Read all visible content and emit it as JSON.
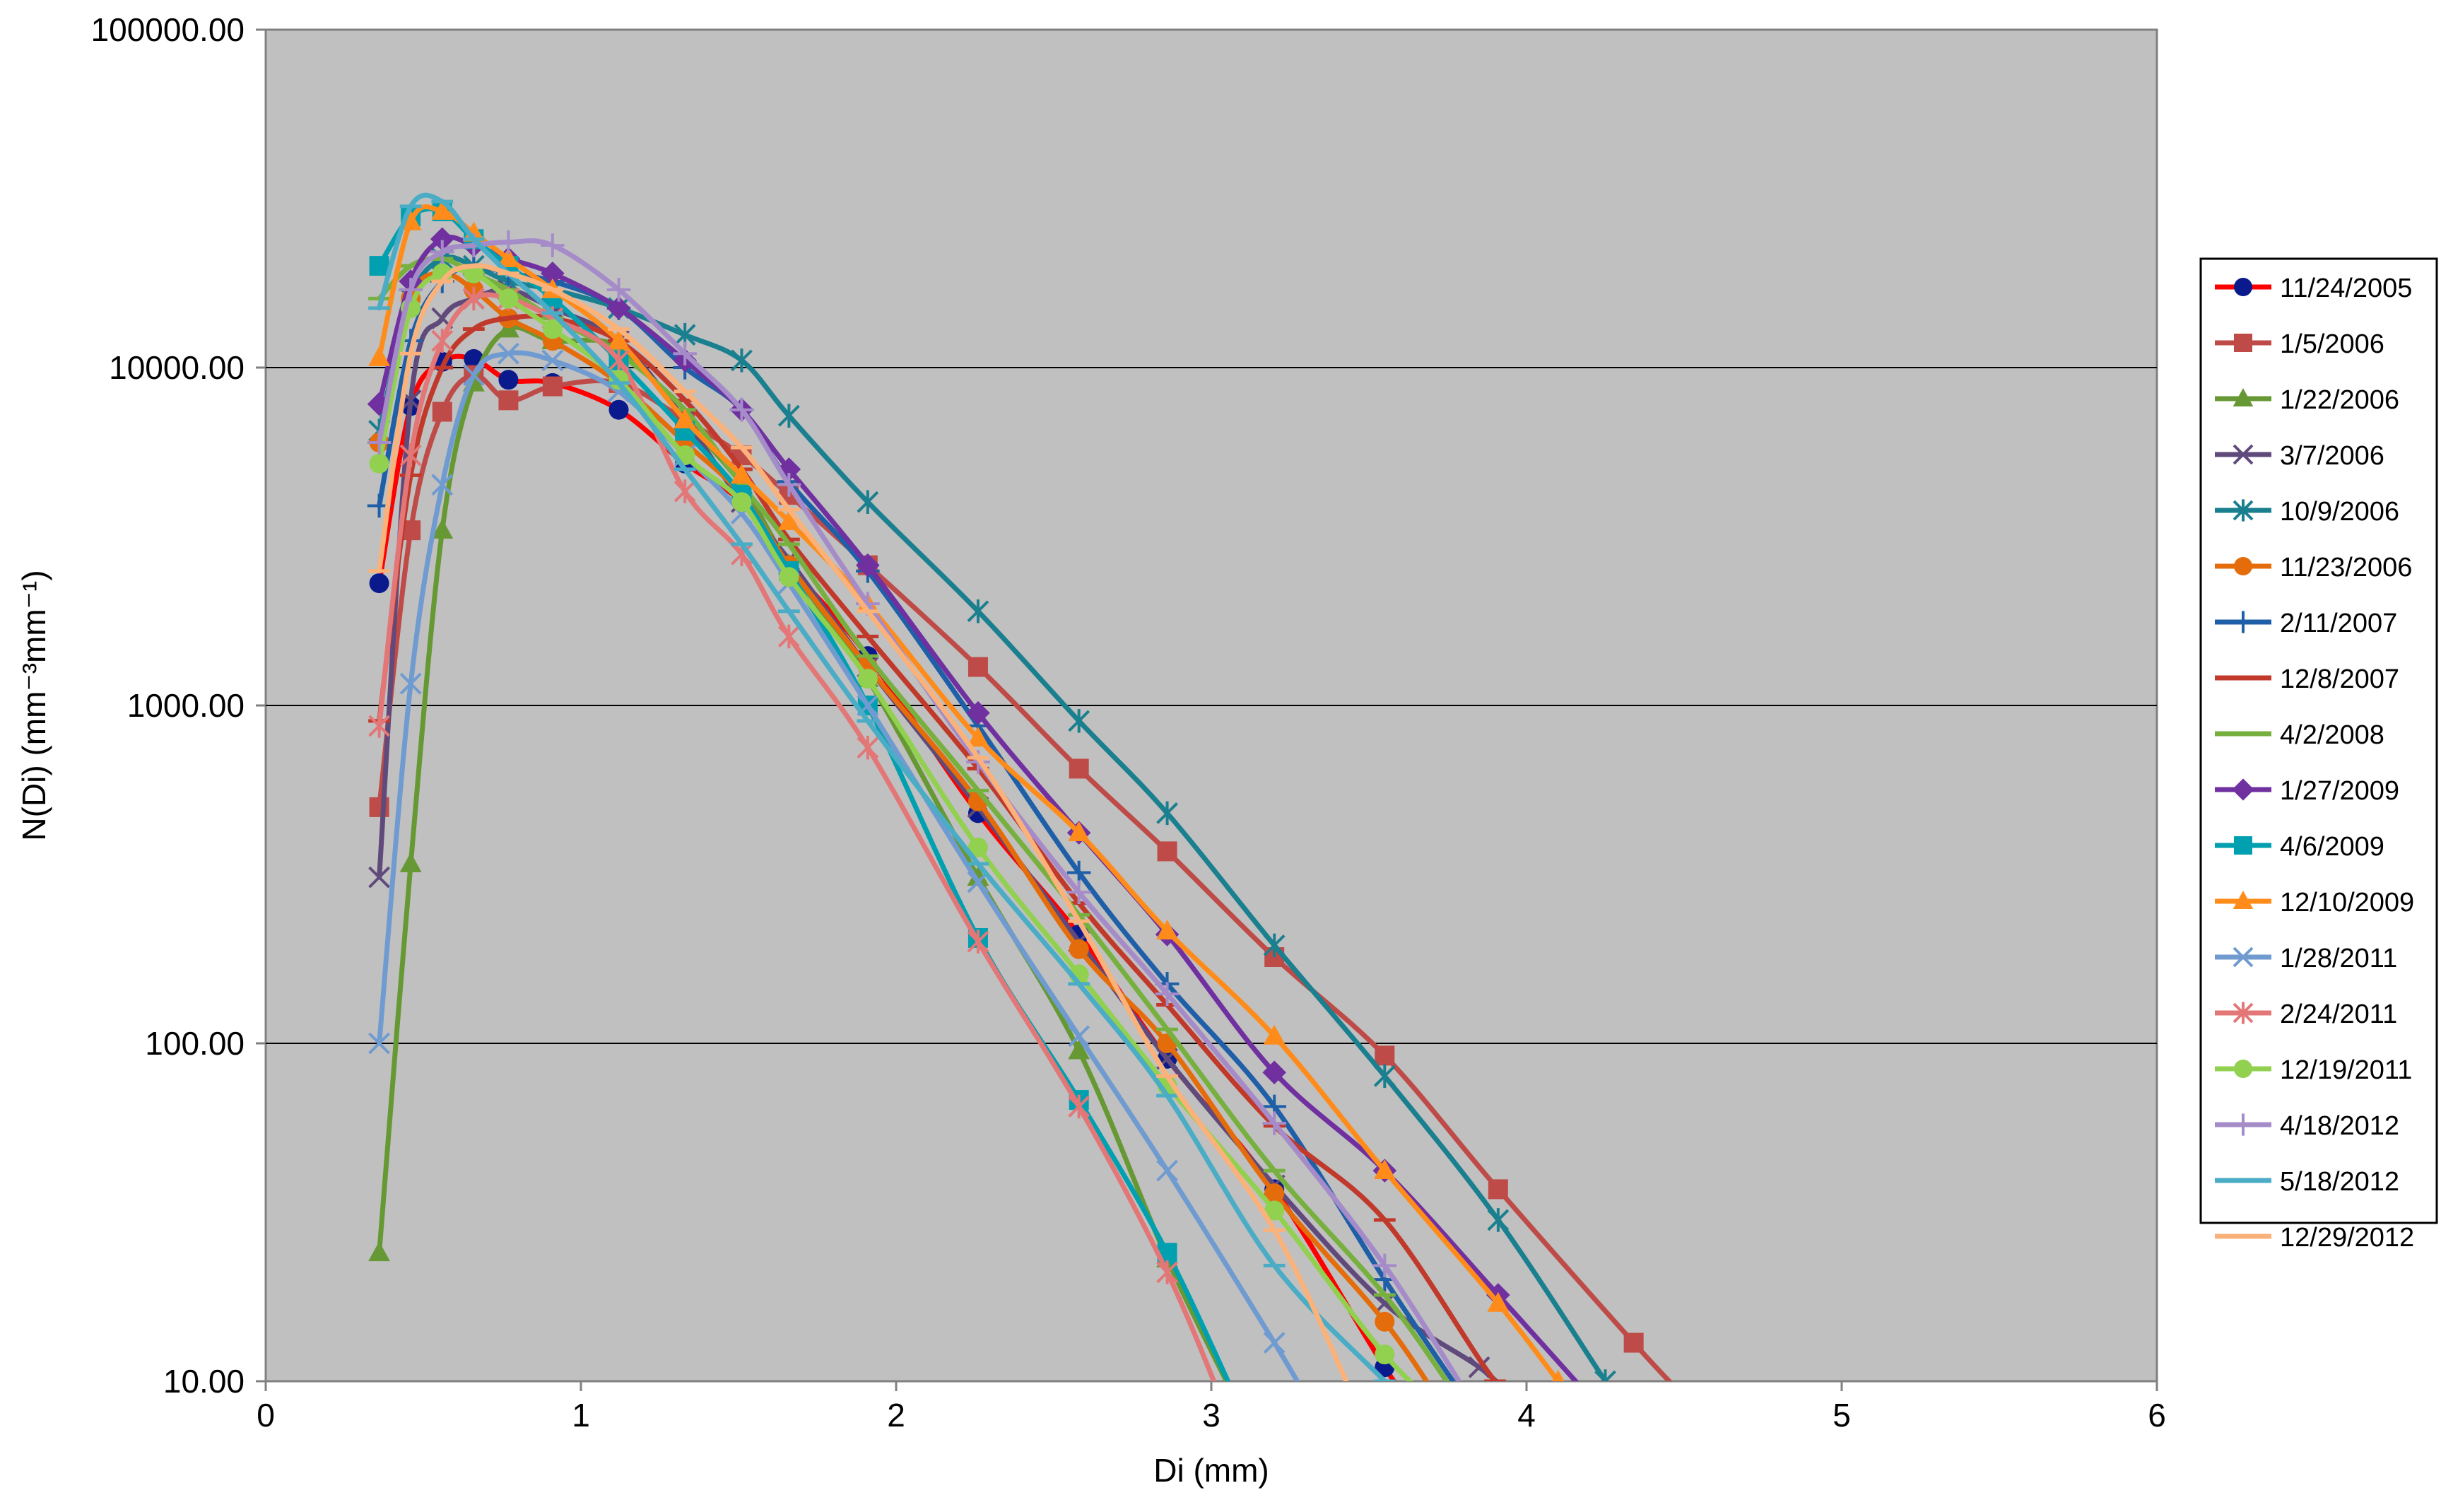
{
  "chart_data": {
    "type": "line",
    "title": "",
    "xlabel": "Di (mm)",
    "ylabel": "N(Di) (mm⁻³mm⁻¹)",
    "xlim": [
      0,
      6
    ],
    "ylim": [
      10,
      100000
    ],
    "y_scale": "log",
    "x_ticks": [
      "0",
      "1",
      "2",
      "3",
      "4",
      "5",
      "6"
    ],
    "y_ticks": [
      "10.00",
      "100.00",
      "1000.00",
      "10000.00",
      "100000.00"
    ],
    "grid": "horizontal",
    "legend_position": "right",
    "plot_background": "#c0c0c0",
    "series": [
      {
        "name": "11/24/2005",
        "color": "#ff0000",
        "marker": "circle",
        "x": [
          0.36,
          0.46,
          0.56,
          0.66,
          0.77,
          0.91,
          1.12,
          1.33,
          1.51,
          1.66,
          1.91,
          2.26,
          2.58,
          2.86,
          3.2,
          3.55,
          3.7
        ],
        "y": [
          2300,
          7700,
          10400,
          10600,
          9200,
          9000,
          7500,
          5200,
          4000,
          2600,
          1400,
          480,
          210,
          90,
          37,
          11,
          7
        ]
      },
      {
        "name": "1/5/2006",
        "color": "#be4b48",
        "marker": "square",
        "x": [
          0.36,
          0.46,
          0.56,
          0.66,
          0.77,
          0.91,
          1.12,
          1.33,
          1.51,
          1.66,
          1.91,
          2.26,
          2.58,
          2.86,
          3.2,
          3.55,
          3.91,
          4.34,
          4.5
        ],
        "y": [
          500,
          3300,
          7400,
          9500,
          8000,
          8800,
          9000,
          7000,
          5500,
          4200,
          2600,
          1300,
          650,
          370,
          180,
          92,
          37,
          13,
          9
        ]
      },
      {
        "name": "1/22/2006",
        "color": "#669933",
        "marker": "triangle",
        "x": [
          0.36,
          0.46,
          0.56,
          0.66,
          0.77,
          0.91,
          1.12,
          1.33,
          1.51,
          1.66,
          1.91,
          2.26,
          2.58,
          2.86,
          3.1
        ],
        "y": [
          24,
          340,
          3300,
          9000,
          13000,
          12000,
          11500,
          7000,
          4500,
          2600,
          1200,
          310,
          95,
          23,
          8
        ]
      },
      {
        "name": "3/7/2006",
        "color": "#604a7b",
        "marker": "x",
        "x": [
          0.36,
          0.46,
          0.56,
          0.66,
          0.77,
          0.91,
          1.12,
          1.33,
          1.51,
          1.66,
          1.91,
          2.26,
          2.58,
          2.86,
          3.2,
          3.55,
          3.85,
          3.95
        ],
        "y": [
          310,
          8000,
          14000,
          16000,
          17000,
          15000,
          12000,
          7000,
          4000,
          2700,
          1300,
          500,
          200,
          90,
          38,
          17,
          11,
          9
        ]
      },
      {
        "name": "10/9/2006",
        "color": "#1a7f8e",
        "marker": "star",
        "x": [
          0.36,
          0.46,
          0.56,
          0.66,
          0.77,
          0.91,
          1.12,
          1.33,
          1.51,
          1.66,
          1.91,
          2.26,
          2.58,
          2.86,
          3.2,
          3.55,
          3.91,
          4.25
        ],
        "y": [
          6500,
          16000,
          21000,
          20000,
          18000,
          17000,
          15000,
          12500,
          10500,
          7200,
          4000,
          1900,
          900,
          480,
          195,
          80,
          30,
          10
        ]
      },
      {
        "name": "11/23/2006",
        "color": "#e46c0a",
        "marker": "circle",
        "x": [
          0.36,
          0.46,
          0.56,
          0.66,
          0.77,
          0.91,
          1.12,
          1.33,
          1.51,
          1.66,
          1.91,
          2.26,
          2.58,
          2.86,
          3.2,
          3.55,
          3.75
        ],
        "y": [
          6000,
          16000,
          19000,
          17000,
          14000,
          12000,
          9000,
          6000,
          4200,
          2600,
          1300,
          520,
          190,
          100,
          36,
          15,
          8
        ]
      },
      {
        "name": "2/11/2007",
        "color": "#1f5fa8",
        "marker": "plus",
        "x": [
          0.36,
          0.46,
          0.56,
          0.66,
          0.77,
          0.91,
          1.12,
          1.33,
          1.51,
          1.66,
          1.91,
          2.26,
          2.58,
          2.86,
          3.2,
          3.55,
          3.8
        ],
        "y": [
          3900,
          12000,
          18000,
          20000,
          19000,
          18000,
          15000,
          10000,
          7500,
          4600,
          2500,
          870,
          320,
          150,
          65,
          20,
          9
        ]
      },
      {
        "name": "12/8/2007",
        "color": "#c0392b",
        "marker": "dash",
        "x": [
          0.36,
          0.46,
          0.56,
          0.66,
          0.77,
          0.91,
          1.12,
          1.33,
          1.51,
          1.66,
          1.91,
          2.26,
          2.58,
          2.86,
          3.2,
          3.55,
          3.9,
          4.0
        ],
        "y": [
          900,
          4800,
          10000,
          13000,
          14000,
          14000,
          12000,
          8000,
          5000,
          3100,
          1600,
          650,
          260,
          130,
          57,
          30,
          10,
          9
        ]
      },
      {
        "name": "4/2/2008",
        "color": "#77b03f",
        "marker": "dash",
        "x": [
          0.36,
          0.46,
          0.56,
          0.66,
          0.77,
          0.91,
          1.12,
          1.33,
          1.51,
          1.66,
          1.91,
          2.26,
          2.58,
          2.86,
          3.2,
          3.55,
          3.78
        ],
        "y": [
          16000,
          20000,
          21000,
          19000,
          17000,
          14000,
          11000,
          7500,
          4500,
          3000,
          1400,
          560,
          240,
          110,
          42,
          18,
          9
        ]
      },
      {
        "name": "1/27/2009",
        "color": "#7030a0",
        "marker": "diamond",
        "x": [
          0.36,
          0.46,
          0.56,
          0.66,
          0.77,
          0.91,
          1.12,
          1.33,
          1.51,
          1.66,
          1.91,
          2.26,
          2.58,
          2.86,
          3.2,
          3.55,
          3.91,
          4.2
        ],
        "y": [
          7800,
          18000,
          24000,
          23000,
          21000,
          19000,
          15000,
          10500,
          7500,
          5000,
          2600,
          950,
          420,
          210,
          82,
          42,
          18,
          9
        ]
      },
      {
        "name": "4/6/2009",
        "color": "#00a0b0",
        "marker": "square",
        "x": [
          0.36,
          0.46,
          0.56,
          0.66,
          0.77,
          0.91,
          1.12,
          1.33,
          1.51,
          1.66,
          1.91,
          2.26,
          2.58,
          2.86,
          3.1
        ],
        "y": [
          20000,
          28000,
          29000,
          24000,
          20000,
          16000,
          10500,
          6500,
          4200,
          2500,
          1000,
          205,
          68,
          24,
          8
        ]
      },
      {
        "name": "12/10/2009",
        "color": "#ff8c1a",
        "marker": "triangle",
        "x": [
          0.36,
          0.46,
          0.56,
          0.66,
          0.77,
          0.91,
          1.12,
          1.33,
          1.51,
          1.66,
          1.91,
          2.26,
          2.58,
          2.86,
          3.2,
          3.55,
          3.91,
          4.1
        ],
        "y": [
          10700,
          27000,
          29000,
          25000,
          21000,
          17000,
          12000,
          7000,
          4800,
          3500,
          2000,
          800,
          420,
          215,
          105,
          42,
          17,
          10
        ]
      },
      {
        "name": "1/28/2011",
        "color": "#6f9bd1",
        "marker": "x",
        "x": [
          0.36,
          0.46,
          0.56,
          0.66,
          0.77,
          0.91,
          1.12,
          1.33,
          1.51,
          1.66,
          1.91,
          2.26,
          2.58,
          2.86,
          3.2,
          3.3
        ],
        "y": [
          100,
          1160,
          4500,
          9500,
          11000,
          10500,
          8500,
          5500,
          3700,
          2300,
          1000,
          300,
          105,
          42,
          13,
          9
        ]
      },
      {
        "name": "2/24/2011",
        "color": "#e37777",
        "marker": "star",
        "x": [
          0.36,
          0.46,
          0.56,
          0.66,
          0.77,
          0.91,
          1.12,
          1.33,
          1.51,
          1.66,
          1.91,
          2.26,
          2.58,
          2.86,
          3.05
        ],
        "y": [
          870,
          5500,
          12000,
          16000,
          16000,
          14000,
          10500,
          4300,
          2800,
          1600,
          750,
          200,
          65,
          21,
          8
        ]
      },
      {
        "name": "12/19/2011",
        "color": "#92d050",
        "marker": "circle",
        "x": [
          0.36,
          0.46,
          0.56,
          0.66,
          0.77,
          0.91,
          1.12,
          1.33,
          1.51,
          1.66,
          1.91,
          2.26,
          2.58,
          2.86,
          3.2,
          3.55,
          3.75
        ],
        "y": [
          5200,
          15000,
          19000,
          19000,
          16000,
          13000,
          9200,
          5500,
          4000,
          2400,
          1200,
          380,
          160,
          75,
          32,
          12,
          8
        ]
      },
      {
        "name": "4/18/2012",
        "color": "#a58cc9",
        "marker": "plus",
        "x": [
          0.36,
          0.46,
          0.56,
          0.66,
          0.77,
          0.91,
          1.12,
          1.33,
          1.51,
          1.66,
          1.91,
          2.26,
          2.58,
          2.86,
          3.2,
          3.55,
          3.85
        ],
        "y": [
          6000,
          17000,
          22000,
          23000,
          23500,
          23000,
          17000,
          11000,
          7500,
          4500,
          2000,
          680,
          280,
          140,
          58,
          22,
          8
        ]
      },
      {
        "name": "5/18/2012",
        "color": "#4bacc6",
        "marker": "dash",
        "x": [
          0.36,
          0.46,
          0.56,
          0.66,
          0.77,
          0.91,
          1.12,
          1.33,
          1.51,
          1.66,
          1.91,
          2.26,
          2.58,
          2.86,
          3.2,
          3.55,
          3.65
        ],
        "y": [
          15000,
          30000,
          31000,
          24000,
          19000,
          14500,
          9000,
          5000,
          3000,
          1900,
          900,
          340,
          150,
          70,
          22,
          10,
          8
        ]
      },
      {
        "name": "12/29/2012",
        "color": "#fab27a",
        "marker": "dash",
        "x": [
          0.36,
          0.46,
          0.56,
          0.66,
          0.77,
          0.91,
          1.12,
          1.33,
          1.51,
          1.66,
          1.91,
          2.26,
          2.58,
          2.86,
          3.2,
          3.45
        ],
        "y": [
          2500,
          11000,
          18000,
          20000,
          19000,
          17000,
          13000,
          8500,
          5800,
          3800,
          1900,
          700,
          230,
          80,
          28,
          9
        ]
      }
    ]
  }
}
